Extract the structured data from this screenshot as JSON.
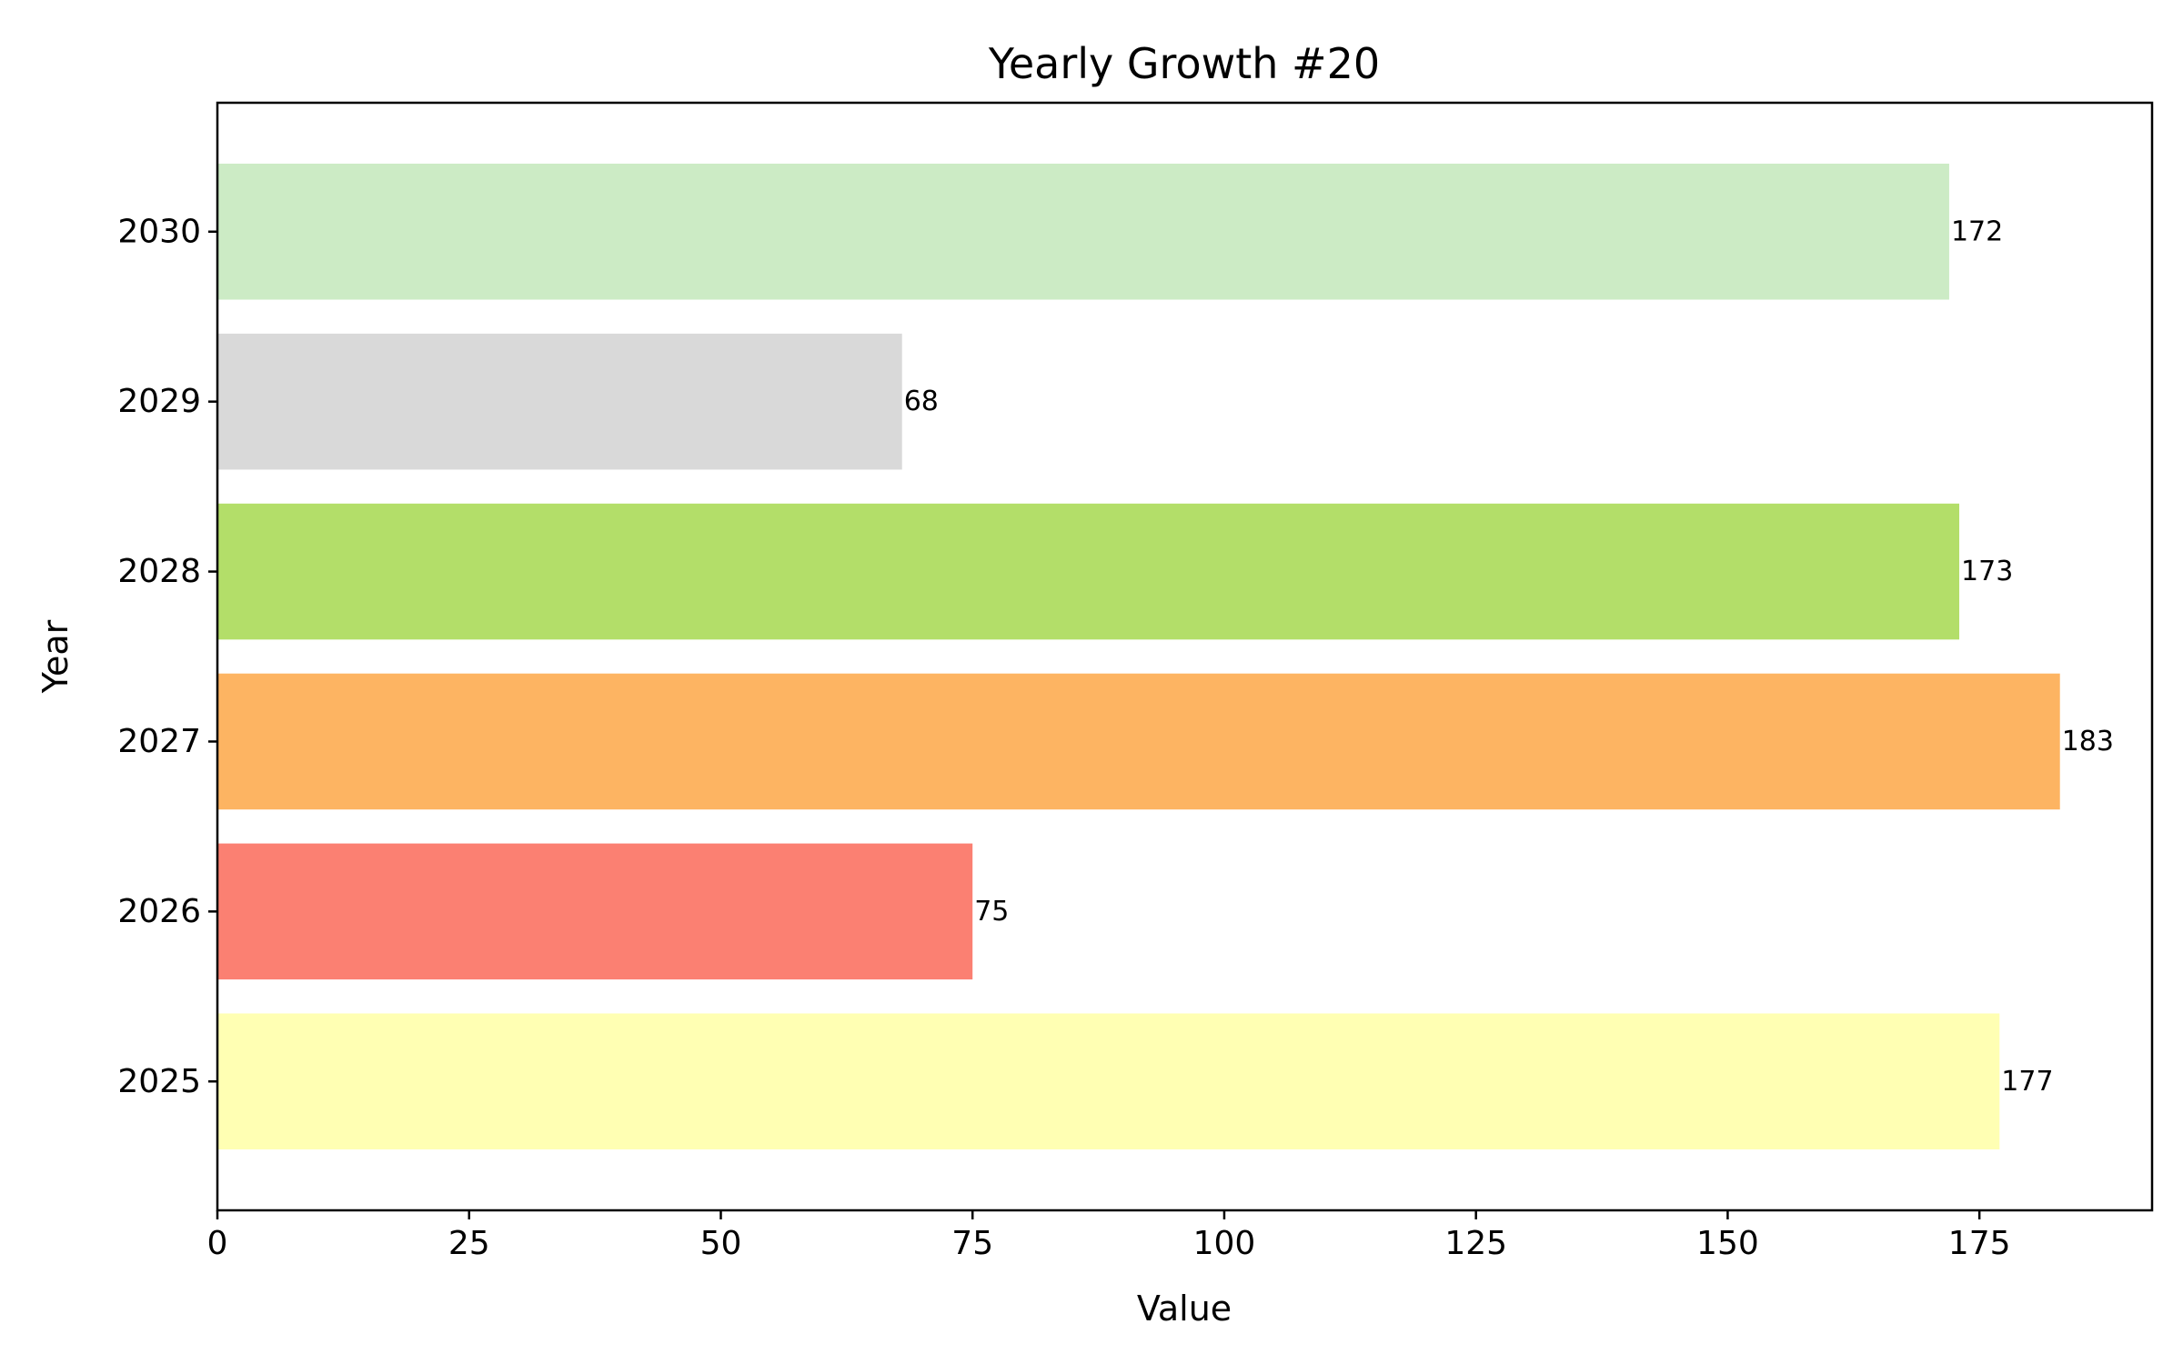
{
  "chart_data": {
    "type": "bar",
    "orientation": "horizontal",
    "title": "Yearly Growth #20",
    "xlabel": "Value",
    "ylabel": "Year",
    "xlim": [
      0,
      192.15
    ],
    "x_ticks": [
      0,
      25,
      50,
      75,
      100,
      125,
      150,
      175
    ],
    "categories": [
      "2025",
      "2026",
      "2027",
      "2028",
      "2029",
      "2030"
    ],
    "values": [
      177,
      75,
      183,
      173,
      68,
      172
    ],
    "data_labels": [
      "177",
      "75",
      "183",
      "173",
      "68",
      "172"
    ],
    "colors": [
      "#ffffb3",
      "#fb8072",
      "#fdb462",
      "#b3de69",
      "#d9d9d9",
      "#ccebc5"
    ],
    "grid": false,
    "legend": false
  }
}
